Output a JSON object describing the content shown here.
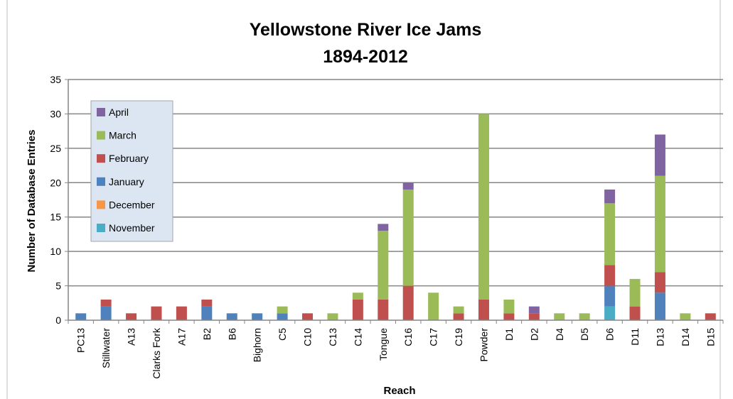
{
  "chart_data": {
    "type": "bar",
    "stacked": true,
    "title": "Yellowstone River Ice Jams",
    "subtitle": "1894-2012",
    "xlabel": "Reach",
    "ylabel": "Number of Database Entries",
    "ylim": [
      0,
      35
    ],
    "yticks": [
      0,
      5,
      10,
      15,
      20,
      25,
      30,
      35
    ],
    "grid": true,
    "legend_position": "top-left",
    "categories": [
      "PC13",
      "Stillwater",
      "A13",
      "Clarks Fork",
      "A17",
      "B2",
      "B6",
      "Bighorn",
      "C5",
      "C10",
      "C13",
      "C14",
      "Tongue",
      "C16",
      "C17",
      "C19",
      "Powder",
      "D1",
      "D2",
      "D4",
      "D5",
      "D6",
      "D11",
      "D13",
      "D14",
      "D15"
    ],
    "series": [
      {
        "name": "November",
        "color": "#4bacc6",
        "values": [
          0,
          0,
          0,
          0,
          0,
          0,
          0,
          0,
          0,
          0,
          0,
          0,
          0,
          0,
          0,
          0,
          0,
          0,
          0,
          0,
          0,
          2,
          0,
          0,
          0,
          0
        ]
      },
      {
        "name": "December",
        "color": "#f79646",
        "values": [
          0,
          0,
          0,
          0,
          0,
          0,
          0,
          0,
          0,
          0,
          0,
          0,
          0,
          0,
          0,
          0,
          0,
          0,
          0,
          0,
          0,
          0,
          0,
          0,
          0,
          0
        ]
      },
      {
        "name": "January",
        "color": "#4f81bd",
        "values": [
          1,
          2,
          0,
          0,
          0,
          2,
          1,
          1,
          1,
          0,
          0,
          0,
          0,
          0,
          0,
          0,
          0,
          0,
          0,
          0,
          0,
          3,
          0,
          4,
          0,
          0
        ]
      },
      {
        "name": "February",
        "color": "#c0504d",
        "values": [
          0,
          1,
          1,
          2,
          2,
          1,
          0,
          0,
          0,
          1,
          0,
          3,
          3,
          5,
          0,
          1,
          3,
          1,
          1,
          0,
          0,
          3,
          2,
          3,
          0,
          1
        ]
      },
      {
        "name": "March",
        "color": "#9bbb59",
        "values": [
          0,
          0,
          0,
          0,
          0,
          0,
          0,
          0,
          1,
          0,
          1,
          1,
          10,
          14,
          4,
          1,
          27,
          2,
          0,
          1,
          1,
          9,
          4,
          14,
          1,
          0
        ]
      },
      {
        "name": "April",
        "color": "#8064a2",
        "values": [
          0,
          0,
          0,
          0,
          0,
          0,
          0,
          0,
          0,
          0,
          0,
          0,
          1,
          1,
          0,
          0,
          0,
          0,
          1,
          0,
          0,
          2,
          0,
          6,
          0,
          0
        ]
      }
    ],
    "legend_order": [
      "April",
      "March",
      "February",
      "January",
      "December",
      "November"
    ]
  }
}
